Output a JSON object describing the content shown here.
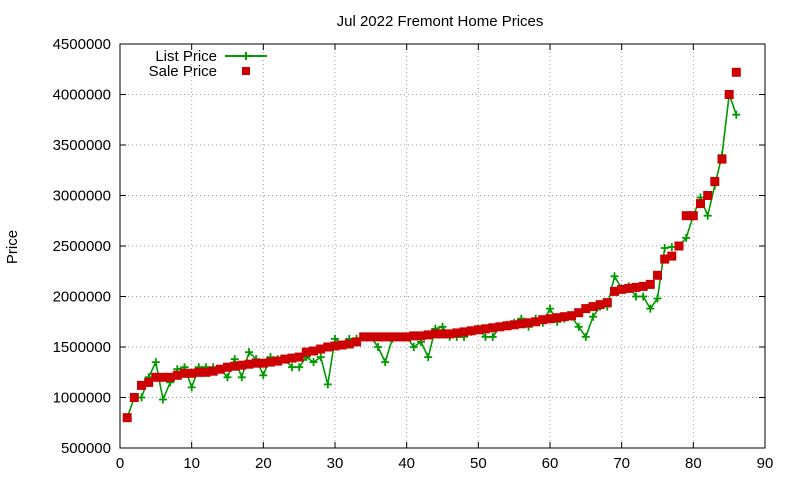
{
  "chart_data": {
    "type": "scatter",
    "title": "Jul 2022 Fremont Home Prices",
    "xlabel": "",
    "ylabel": "Price",
    "xlim": [
      0,
      90
    ],
    "ylim": [
      500000,
      4500000
    ],
    "x_ticks": [
      "0",
      "10",
      "20",
      "30",
      "40",
      "50",
      "60",
      "70",
      "80",
      "90"
    ],
    "y_ticks": [
      "500000",
      "1000000",
      "1500000",
      "2000000",
      "2500000",
      "3000000",
      "3500000",
      "4000000",
      "4500000"
    ],
    "grid": true,
    "legend_position": "top-left",
    "series": [
      {
        "name": "List Price",
        "style": "linespoints",
        "color": "#009900",
        "marker": "plus",
        "values": [
          800000,
          1000000,
          1000000,
          1200000,
          1350000,
          980000,
          1150000,
          1280000,
          1300000,
          1100000,
          1300000,
          1300000,
          1300000,
          1280000,
          1200000,
          1380000,
          1200000,
          1450000,
          1380000,
          1220000,
          1400000,
          1380000,
          1380000,
          1300000,
          1300000,
          1400000,
          1350000,
          1400000,
          1130000,
          1580000,
          1520000,
          1580000,
          1580000,
          1600000,
          1600000,
          1500000,
          1350000,
          1580000,
          1600000,
          1600000,
          1500000,
          1550000,
          1400000,
          1680000,
          1700000,
          1600000,
          1600000,
          1600000,
          1650000,
          1680000,
          1600000,
          1600000,
          1700000,
          1720000,
          1740000,
          1780000,
          1700000,
          1780000,
          1740000,
          1880000,
          1750000,
          1780000,
          1800000,
          1700000,
          1600000,
          1800000,
          1900000,
          1900000,
          2200000,
          2080000,
          2100000,
          2000000,
          2000000,
          1880000,
          1980000,
          2480000,
          2490000,
          2500000,
          2580000,
          2800000,
          2980000,
          2800000,
          3100000,
          3400000,
          4000000,
          3800000
        ]
      },
      {
        "name": "Sale Price",
        "style": "points",
        "color": "#cc0000",
        "marker": "square",
        "values": [
          800000,
          1000000,
          1120000,
          1150000,
          1200000,
          1200000,
          1200000,
          1220000,
          1240000,
          1240000,
          1250000,
          1250000,
          1260000,
          1280000,
          1300000,
          1310000,
          1320000,
          1330000,
          1340000,
          1340000,
          1350000,
          1360000,
          1380000,
          1390000,
          1400000,
          1450000,
          1460000,
          1480000,
          1500000,
          1510000,
          1520000,
          1530000,
          1550000,
          1600000,
          1600000,
          1600000,
          1600000,
          1600000,
          1600000,
          1600000,
          1610000,
          1610000,
          1620000,
          1630000,
          1630000,
          1630000,
          1640000,
          1650000,
          1660000,
          1670000,
          1680000,
          1690000,
          1700000,
          1710000,
          1720000,
          1730000,
          1740000,
          1750000,
          1770000,
          1780000,
          1790000,
          1800000,
          1810000,
          1840000,
          1880000,
          1900000,
          1920000,
          1940000,
          2050000,
          2070000,
          2080000,
          2090000,
          2100000,
          2120000,
          2210000,
          2370000,
          2400000,
          2500000,
          2800000,
          2800000,
          2920000,
          3000000,
          3140000,
          3360000,
          4000000,
          4220000
        ]
      }
    ]
  }
}
